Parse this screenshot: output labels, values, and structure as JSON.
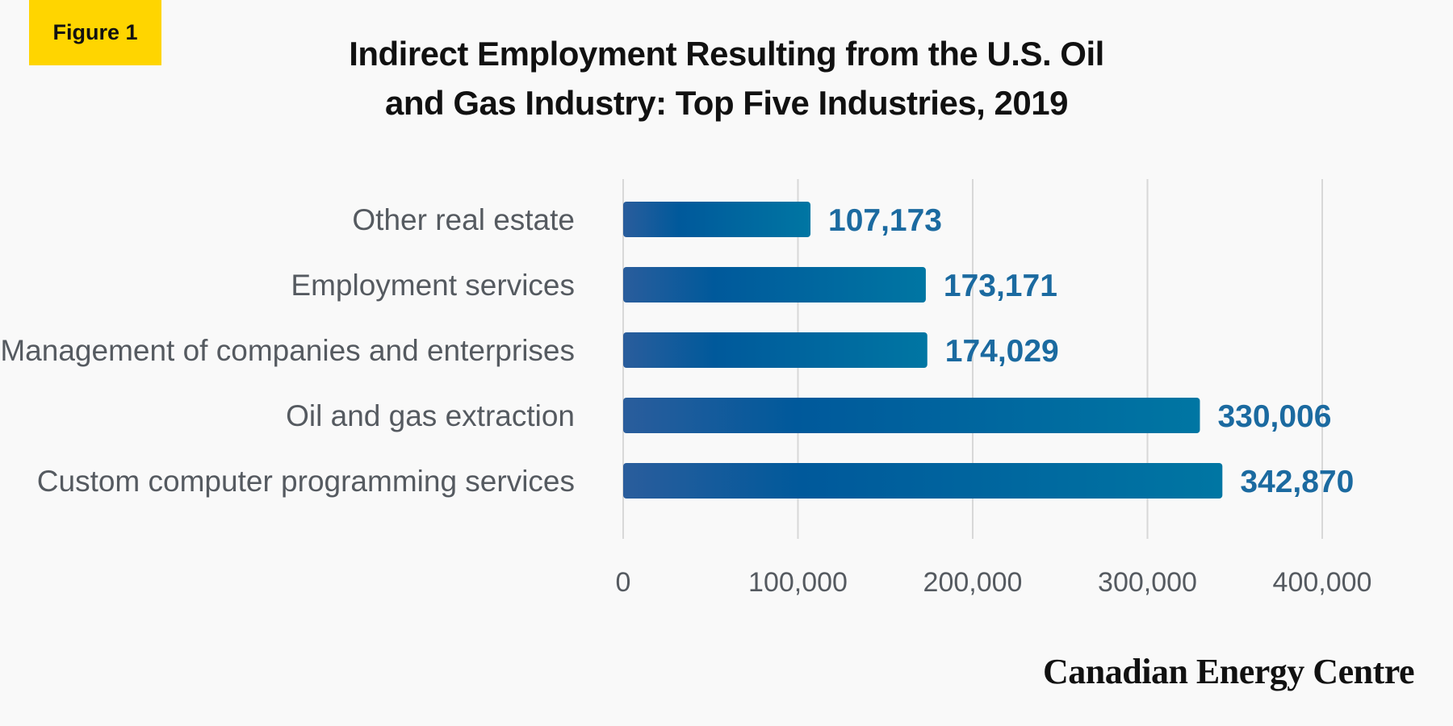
{
  "figure_label": "Figure 1",
  "title_lines": [
    "Indirect Employment Resulting from the U.S. Oil",
    "and Gas Industry: Top Five Industries, 2019"
  ],
  "brand": "Canadian Energy Centre",
  "colors": {
    "badge": "#ffd500",
    "bar_start": "#2a5d9c",
    "bar_mid": "#00599b",
    "bar_end": "#0076a3",
    "value_label": "#1b6aa0",
    "grid": "#d8d8d8"
  },
  "chart_data": {
    "type": "bar",
    "orientation": "horizontal",
    "title": "Indirect Employment Resulting from the U.S. Oil and Gas Industry: Top Five Industries, 2019",
    "categories": [
      "Other real estate",
      "Employment services",
      "Management of companies and enterprises",
      "Oil and gas extraction",
      "Custom computer programming services"
    ],
    "values": [
      107173,
      173171,
      174029,
      330006,
      342870
    ],
    "value_labels": [
      "107,173",
      "173,171",
      "174,029",
      "330,006",
      "342,870"
    ],
    "xlim": [
      0,
      400000
    ],
    "ticks": [
      0,
      100000,
      200000,
      300000,
      400000
    ],
    "tick_labels": [
      "0",
      "100,000",
      "200,000",
      "300,000",
      "400,000"
    ],
    "xlabel": "",
    "ylabel": "",
    "grid": true
  }
}
